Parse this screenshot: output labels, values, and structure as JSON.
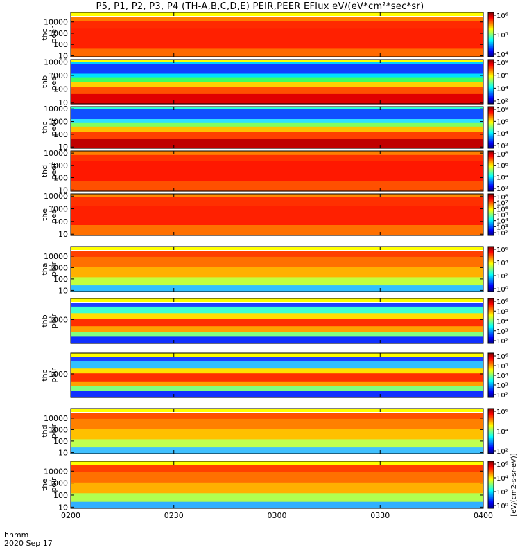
{
  "title": "P5, P1, P2, P3, P4 (TH-A,B,C,D,E) PEIR,PEER EFlux eV/(eV*cm²*sec*sr)",
  "footer": {
    "time_unit": "hhmm",
    "date": "2020 Sep 17"
  },
  "colorbar_unit_label": "[eV/(cm2-s-sr-eV)]",
  "colors": {
    "background": "#ffffff",
    "axis": "#000000"
  },
  "chart_data": [
    {
      "type": "heatmap",
      "ylabel": "thc peer",
      "ylim": [
        8,
        30000
      ],
      "yscale": "log",
      "yticks": [
        10,
        100,
        1000,
        10000
      ],
      "cbar_ticks": [
        "10⁶",
        "10⁵",
        "10⁴"
      ]
    },
    {
      "type": "heatmap",
      "ylabel": "thb peer",
      "ylim": [
        8,
        15000
      ],
      "yscale": "log",
      "yticks": [
        10,
        100,
        1000,
        10000
      ],
      "cbar_ticks": [
        "10⁸",
        "10⁶",
        "10⁴",
        "10²"
      ]
    },
    {
      "type": "heatmap",
      "ylabel": "thc peer",
      "ylim": [
        8,
        15000
      ],
      "yscale": "log",
      "yticks": [
        10,
        100,
        1000,
        10000
      ],
      "cbar_ticks": [
        "10⁸",
        "10⁶",
        "10⁴",
        "10²"
      ]
    },
    {
      "type": "heatmap",
      "ylabel": "thd peer",
      "ylim": [
        8,
        15000
      ],
      "yscale": "log",
      "yticks": [
        10,
        100,
        1000,
        10000
      ],
      "cbar_ticks": [
        "10⁸",
        "10⁶",
        "10⁴",
        "10²"
      ]
    },
    {
      "type": "heatmap",
      "ylabel": "the peer",
      "ylim": [
        8,
        15000
      ],
      "yscale": "log",
      "yticks": [
        10,
        100,
        1000,
        10000
      ],
      "cbar_ticks": [
        "10⁸",
        "10⁷",
        "10⁶",
        "10⁵",
        "10⁴",
        "10³",
        "10²"
      ]
    },
    {
      "type": "heatmap",
      "ylabel": "tha peir",
      "ylim": [
        8,
        30000
      ],
      "yscale": "log",
      "yticks": [
        10,
        100,
        1000,
        10000
      ],
      "cbar_ticks": [
        "10⁶",
        "10⁴",
        "10²",
        "10⁰"
      ]
    },
    {
      "type": "heatmap",
      "ylabel": "thb peir",
      "ylim": [
        8,
        30000
      ],
      "yscale": "log",
      "yticks": [
        1000
      ],
      "cbar_ticks": [
        "10⁶",
        "10⁵",
        "10⁴",
        "10³",
        "10²"
      ]
    },
    {
      "type": "heatmap",
      "ylabel": "thc peir",
      "ylim": [
        8,
        30000
      ],
      "yscale": "log",
      "yticks": [
        1000
      ],
      "cbar_ticks": [
        "10⁶",
        "10⁵",
        "10⁴",
        "10³",
        "10²"
      ]
    },
    {
      "type": "heatmap",
      "ylabel": "thd peir",
      "ylim": [
        8,
        30000
      ],
      "yscale": "log",
      "yticks": [
        10,
        100,
        1000,
        10000
      ],
      "cbar_ticks": [
        "10⁶",
        "10⁴",
        "10²"
      ]
    },
    {
      "type": "heatmap",
      "ylabel": "the peir",
      "ylim": [
        8,
        30000
      ],
      "yscale": "log",
      "yticks": [
        10,
        100,
        1000,
        10000
      ],
      "cbar_ticks": [
        "10⁶",
        "10⁴",
        "10²",
        "10⁰"
      ]
    }
  ],
  "x_axis": {
    "ticks": [
      "0200",
      "0230",
      "0300",
      "0330",
      "0400"
    ]
  }
}
